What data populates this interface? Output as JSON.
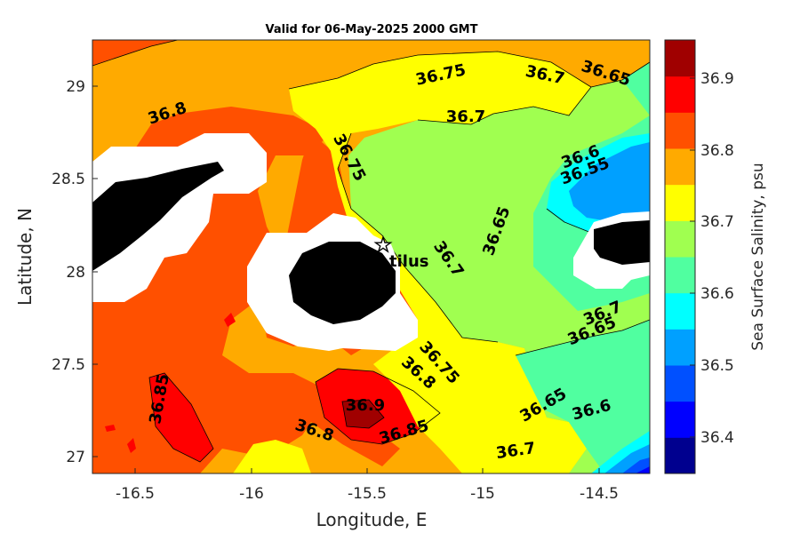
{
  "title": "Valid for 06-May-2025 2000 GMT",
  "x_axis": {
    "label": "Longitude, E",
    "ticks": [
      "-16.5",
      "-16",
      "-15.5",
      "-15",
      "-14.5"
    ]
  },
  "y_axis": {
    "label": "Latitude, N",
    "ticks": [
      "29",
      "28.5",
      "28",
      "27.5",
      "27"
    ]
  },
  "colorbar": {
    "label": "Sea Surface Salinity, psu",
    "ticks": [
      "36.9",
      "36.8",
      "36.7",
      "36.6",
      "36.5",
      "36.4"
    ],
    "levels": [
      "#00008f",
      "#0000ff",
      "#0050ff",
      "#00a0ff",
      "#00ffff",
      "#50ffa0",
      "#a0ff50",
      "#ffff00",
      "#ffaa00",
      "#ff5000",
      "#ff0000",
      "#a00000"
    ]
  },
  "station_label": "tilus",
  "contour_labels": [
    "36.75",
    "36.7",
    "36.65",
    "36.8",
    "36.7",
    "36.75",
    "36.6",
    "36.55",
    "36.65",
    "36.7",
    "36.7",
    "36.65",
    "36.85",
    "36.75",
    "36.8",
    "36.9",
    "36.85",
    "36.8",
    "36.65",
    "36.6",
    "36.7"
  ],
  "colors": {
    "land": "#000000",
    "mask": "#ffffff"
  }
}
